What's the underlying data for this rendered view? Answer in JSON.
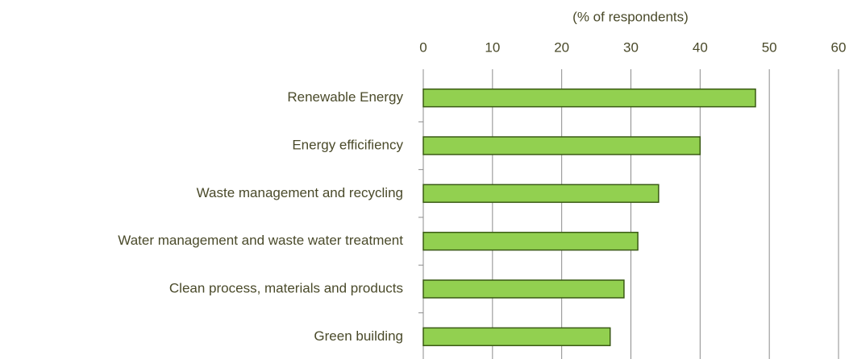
{
  "chart_data": {
    "type": "bar",
    "orientation": "horizontal",
    "x_label": "(% of respondents)",
    "categories": [
      "Renewable Energy",
      "Energy efficifiency",
      "Waste management and recycling",
      "Water management and waste water treatment",
      "Clean process, materials and products",
      "Green building"
    ],
    "values": [
      48,
      40,
      34,
      31,
      29,
      27
    ],
    "color": "#92d050",
    "edge_color": "#3a5a14",
    "xlim": [
      0,
      60
    ],
    "xticks": [
      0,
      10,
      20,
      30,
      40,
      50,
      60
    ],
    "grid": true
  }
}
